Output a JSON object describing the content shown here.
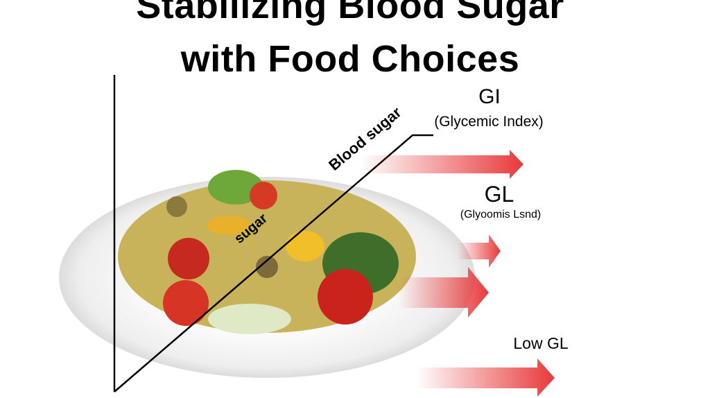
{
  "title": {
    "line1": "Stabilizing Blood Sugar",
    "line2": "with Food Choices"
  },
  "diagram": {
    "line_label": "Blood sugar",
    "line_label_lower": "sugar",
    "gi": {
      "label": "GI",
      "sub": "(Glycemic Index)"
    },
    "gl": {
      "label": "GL",
      "sub": "(Glyoomis Lsnd)"
    },
    "low_gl": "Low GL"
  },
  "colors": {
    "arrow": "#e8393a",
    "text": "#000000",
    "plate": "#f2f2f2"
  }
}
